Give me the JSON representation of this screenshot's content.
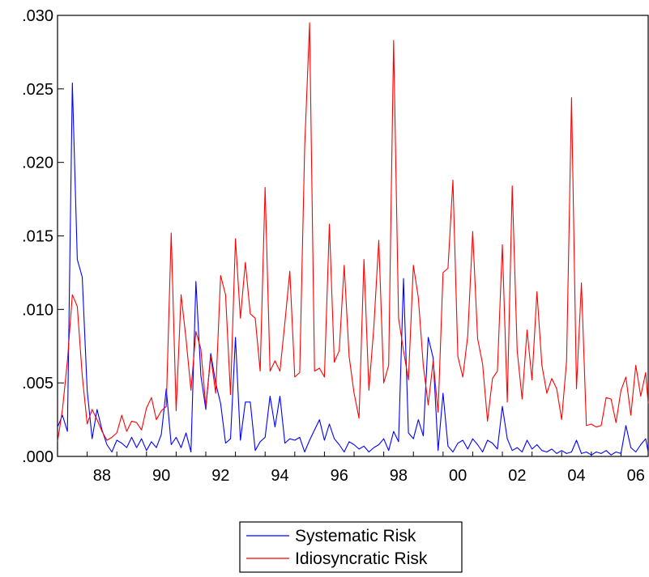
{
  "chart_data": {
    "type": "line",
    "title": "",
    "xlabel": "",
    "ylabel": "",
    "x_ticks": [
      "88",
      "90",
      "92",
      "94",
      "96",
      "98",
      "00",
      "02",
      "04",
      "06"
    ],
    "y_ticks": [
      ".000",
      ".005",
      ".010",
      ".015",
      ".020",
      ".025",
      ".030"
    ],
    "ylim": [
      0,
      0.03
    ],
    "xlim": [
      "1987-01",
      "2006-12"
    ],
    "grid": false,
    "legend_position": "bottom-center",
    "series": [
      {
        "name": "Systematic Risk",
        "color": "#0000ff",
        "points": [
          [
            "1987-01",
            0.002
          ],
          [
            "1987-03",
            0.0028
          ],
          [
            "1987-05",
            0.0017
          ],
          [
            "1987-07",
            0.0254
          ],
          [
            "1987-09",
            0.0134
          ],
          [
            "1987-11",
            0.0122
          ],
          [
            "1988-01",
            0.0045
          ],
          [
            "1988-03",
            0.0012
          ],
          [
            "1988-05",
            0.0032
          ],
          [
            "1988-07",
            0.0018
          ],
          [
            "1988-09",
            0.0008
          ],
          [
            "1988-11",
            0.0003
          ],
          [
            "1989-01",
            0.0011
          ],
          [
            "1989-03",
            0.0009
          ],
          [
            "1989-05",
            0.0006
          ],
          [
            "1989-07",
            0.0013
          ],
          [
            "1989-09",
            0.0006
          ],
          [
            "1989-11",
            0.0012
          ],
          [
            "1990-01",
            0.0004
          ],
          [
            "1990-03",
            0.001
          ],
          [
            "1990-05",
            0.0006
          ],
          [
            "1990-07",
            0.0015
          ],
          [
            "1990-09",
            0.0046
          ],
          [
            "1990-11",
            0.0008
          ],
          [
            "1991-01",
            0.0013
          ],
          [
            "1991-03",
            0.0006
          ],
          [
            "1991-05",
            0.0016
          ],
          [
            "1991-07",
            0.0003
          ],
          [
            "1991-09",
            0.0119
          ],
          [
            "1991-11",
            0.0055
          ],
          [
            "1992-01",
            0.0032
          ],
          [
            "1992-03",
            0.007
          ],
          [
            "1992-05",
            0.005
          ],
          [
            "1992-07",
            0.0036
          ],
          [
            "1992-09",
            0.0009
          ],
          [
            "1992-11",
            0.0012
          ],
          [
            "1993-01",
            0.0081
          ],
          [
            "1993-03",
            0.0011
          ],
          [
            "1993-05",
            0.0037
          ],
          [
            "1993-07",
            0.0037
          ],
          [
            "1993-09",
            0.0004
          ],
          [
            "1993-11",
            0.001
          ],
          [
            "1994-01",
            0.0013
          ],
          [
            "1994-03",
            0.0041
          ],
          [
            "1994-05",
            0.002
          ],
          [
            "1994-07",
            0.0041
          ],
          [
            "1994-09",
            0.0009
          ],
          [
            "1994-11",
            0.0012
          ],
          [
            "1995-01",
            0.0011
          ],
          [
            "1995-03",
            0.0013
          ],
          [
            "1995-05",
            0.0003
          ],
          [
            "1995-07",
            0.0011
          ],
          [
            "1995-09",
            0.0018
          ],
          [
            "1995-11",
            0.0025
          ],
          [
            "1996-01",
            0.0011
          ],
          [
            "1996-03",
            0.0022
          ],
          [
            "1996-05",
            0.0012
          ],
          [
            "1996-07",
            0.0008
          ],
          [
            "1996-09",
            0.0003
          ],
          [
            "1996-11",
            0.001
          ],
          [
            "1997-01",
            0.0008
          ],
          [
            "1997-03",
            0.0005
          ],
          [
            "1997-05",
            0.0007
          ],
          [
            "1997-07",
            0.0003
          ],
          [
            "1997-09",
            0.0006
          ],
          [
            "1997-11",
            0.0008
          ],
          [
            "1998-01",
            0.0012
          ],
          [
            "1998-03",
            0.0004
          ],
          [
            "1998-05",
            0.0017
          ],
          [
            "1998-07",
            0.001
          ],
          [
            "1998-09",
            0.0121
          ],
          [
            "1998-11",
            0.0016
          ],
          [
            "1999-01",
            0.0012
          ],
          [
            "1999-03",
            0.0025
          ],
          [
            "1999-05",
            0.0014
          ],
          [
            "1999-07",
            0.0081
          ],
          [
            "1999-09",
            0.0067
          ],
          [
            "1999-11",
            0.0004
          ],
          [
            "2000-01",
            0.0043
          ],
          [
            "2000-03",
            0.0007
          ],
          [
            "2000-05",
            0.0003
          ],
          [
            "2000-07",
            0.0009
          ],
          [
            "2000-09",
            0.0011
          ],
          [
            "2000-11",
            0.0005
          ],
          [
            "2001-01",
            0.0012
          ],
          [
            "2001-03",
            0.0008
          ],
          [
            "2001-05",
            0.0003
          ],
          [
            "2001-07",
            0.0011
          ],
          [
            "2001-09",
            0.0009
          ],
          [
            "2001-11",
            0.0005
          ],
          [
            "2002-01",
            0.0034
          ],
          [
            "2002-03",
            0.0012
          ],
          [
            "2002-05",
            0.0004
          ],
          [
            "2002-07",
            0.0006
          ],
          [
            "2002-09",
            0.0003
          ],
          [
            "2002-11",
            0.0011
          ],
          [
            "2003-01",
            0.0005
          ],
          [
            "2003-03",
            0.0008
          ],
          [
            "2003-05",
            0.0004
          ],
          [
            "2003-07",
            0.0003
          ],
          [
            "2003-09",
            0.0005
          ],
          [
            "2003-11",
            0.0002
          ],
          [
            "2004-01",
            0.0004
          ],
          [
            "2004-03",
            0.0002
          ],
          [
            "2004-05",
            0.0003
          ],
          [
            "2004-07",
            0.0011
          ],
          [
            "2004-09",
            0.0002
          ],
          [
            "2004-11",
            0.0003
          ],
          [
            "2005-01",
            0.0001
          ],
          [
            "2005-03",
            0.0003
          ],
          [
            "2005-05",
            0.0002
          ],
          [
            "2005-07",
            0.0004
          ],
          [
            "2005-09",
            0.0001
          ],
          [
            "2005-11",
            0.0003
          ],
          [
            "2006-01",
            0.0002
          ],
          [
            "2006-03",
            0.0021
          ],
          [
            "2006-05",
            0.0006
          ],
          [
            "2006-07",
            0.0003
          ],
          [
            "2006-09",
            0.0008
          ],
          [
            "2006-11",
            0.0012
          ],
          [
            "2006-12",
            0.0003
          ]
        ]
      },
      {
        "name": "Idiosyncratic Risk",
        "color": "#ff0000",
        "points": [
          [
            "1987-01",
            0.001
          ],
          [
            "1987-03",
            0.0032
          ],
          [
            "1987-05",
            0.0065
          ],
          [
            "1987-07",
            0.011
          ],
          [
            "1987-09",
            0.0102
          ],
          [
            "1987-11",
            0.0055
          ],
          [
            "1988-01",
            0.0022
          ],
          [
            "1988-03",
            0.0032
          ],
          [
            "1988-05",
            0.0025
          ],
          [
            "1988-07",
            0.0017
          ],
          [
            "1988-09",
            0.0011
          ],
          [
            "1988-11",
            0.0013
          ],
          [
            "1989-01",
            0.0016
          ],
          [
            "1989-03",
            0.0028
          ],
          [
            "1989-05",
            0.0017
          ],
          [
            "1989-07",
            0.0024
          ],
          [
            "1989-09",
            0.0023
          ],
          [
            "1989-11",
            0.0018
          ],
          [
            "1990-01",
            0.0033
          ],
          [
            "1990-03",
            0.004
          ],
          [
            "1990-05",
            0.0025
          ],
          [
            "1990-07",
            0.0031
          ],
          [
            "1990-09",
            0.0034
          ],
          [
            "1990-11",
            0.0152
          ],
          [
            "1991-01",
            0.0031
          ],
          [
            "1991-03",
            0.011
          ],
          [
            "1991-05",
            0.008
          ],
          [
            "1991-07",
            0.0045
          ],
          [
            "1991-09",
            0.0085
          ],
          [
            "1991-11",
            0.0073
          ],
          [
            "1992-01",
            0.0034
          ],
          [
            "1992-03",
            0.0068
          ],
          [
            "1992-05",
            0.0043
          ],
          [
            "1992-07",
            0.0123
          ],
          [
            "1992-09",
            0.011
          ],
          [
            "1992-11",
            0.0042
          ],
          [
            "1993-01",
            0.0148
          ],
          [
            "1993-03",
            0.0094
          ],
          [
            "1993-05",
            0.0132
          ],
          [
            "1993-07",
            0.0097
          ],
          [
            "1993-09",
            0.0094
          ],
          [
            "1993-11",
            0.0058
          ],
          [
            "1994-01",
            0.0183
          ],
          [
            "1994-03",
            0.0058
          ],
          [
            "1994-05",
            0.0065
          ],
          [
            "1994-07",
            0.0058
          ],
          [
            "1994-09",
            0.0091
          ],
          [
            "1994-11",
            0.0126
          ],
          [
            "1995-01",
            0.0054
          ],
          [
            "1995-03",
            0.0057
          ],
          [
            "1995-05",
            0.021
          ],
          [
            "1995-07",
            0.0295
          ],
          [
            "1995-09",
            0.0058
          ],
          [
            "1995-11",
            0.006
          ],
          [
            "1996-01",
            0.0054
          ],
          [
            "1996-03",
            0.0158
          ],
          [
            "1996-05",
            0.0064
          ],
          [
            "1996-07",
            0.0072
          ],
          [
            "1996-09",
            0.013
          ],
          [
            "1996-11",
            0.0068
          ],
          [
            "1997-01",
            0.0043
          ],
          [
            "1997-03",
            0.0026
          ],
          [
            "1997-05",
            0.0134
          ],
          [
            "1997-07",
            0.0045
          ],
          [
            "1997-09",
            0.0088
          ],
          [
            "1997-11",
            0.0147
          ],
          [
            "1998-01",
            0.005
          ],
          [
            "1998-03",
            0.0062
          ],
          [
            "1998-05",
            0.0283
          ],
          [
            "1998-07",
            0.0094
          ],
          [
            "1998-09",
            0.0072
          ],
          [
            "1998-11",
            0.0052
          ],
          [
            "1999-01",
            0.013
          ],
          [
            "1999-03",
            0.0108
          ],
          [
            "1999-05",
            0.0062
          ],
          [
            "1999-07",
            0.0035
          ],
          [
            "1999-09",
            0.0065
          ],
          [
            "1999-11",
            0.003
          ],
          [
            "2000-01",
            0.0125
          ],
          [
            "2000-03",
            0.0128
          ],
          [
            "2000-05",
            0.0188
          ],
          [
            "2000-07",
            0.0068
          ],
          [
            "2000-09",
            0.0054
          ],
          [
            "2000-11",
            0.0082
          ],
          [
            "2001-01",
            0.0153
          ],
          [
            "2001-03",
            0.008
          ],
          [
            "2001-05",
            0.0063
          ],
          [
            "2001-07",
            0.0024
          ],
          [
            "2001-09",
            0.0053
          ],
          [
            "2001-11",
            0.0058
          ],
          [
            "2002-01",
            0.0144
          ],
          [
            "2002-03",
            0.0037
          ],
          [
            "2002-05",
            0.0184
          ],
          [
            "2002-07",
            0.0072
          ],
          [
            "2002-09",
            0.0039
          ],
          [
            "2002-11",
            0.0086
          ],
          [
            "2003-01",
            0.0052
          ],
          [
            "2003-03",
            0.0112
          ],
          [
            "2003-05",
            0.0062
          ],
          [
            "2003-07",
            0.0043
          ],
          [
            "2003-09",
            0.0053
          ],
          [
            "2003-11",
            0.0046
          ],
          [
            "2004-01",
            0.0025
          ],
          [
            "2004-03",
            0.0065
          ],
          [
            "2004-05",
            0.0244
          ],
          [
            "2004-07",
            0.0046
          ],
          [
            "2004-09",
            0.0118
          ],
          [
            "2004-11",
            0.0021
          ],
          [
            "2005-01",
            0.0022
          ],
          [
            "2005-03",
            0.002
          ],
          [
            "2005-05",
            0.0021
          ],
          [
            "2005-07",
            0.004
          ],
          [
            "2005-09",
            0.0039
          ],
          [
            "2005-11",
            0.0023
          ],
          [
            "2006-01",
            0.0045
          ],
          [
            "2006-03",
            0.0054
          ],
          [
            "2006-05",
            0.0028
          ],
          [
            "2006-07",
            0.0062
          ],
          [
            "2006-09",
            0.0041
          ],
          [
            "2006-11",
            0.0057
          ],
          [
            "2006-12",
            0.0036
          ]
        ]
      }
    ]
  }
}
